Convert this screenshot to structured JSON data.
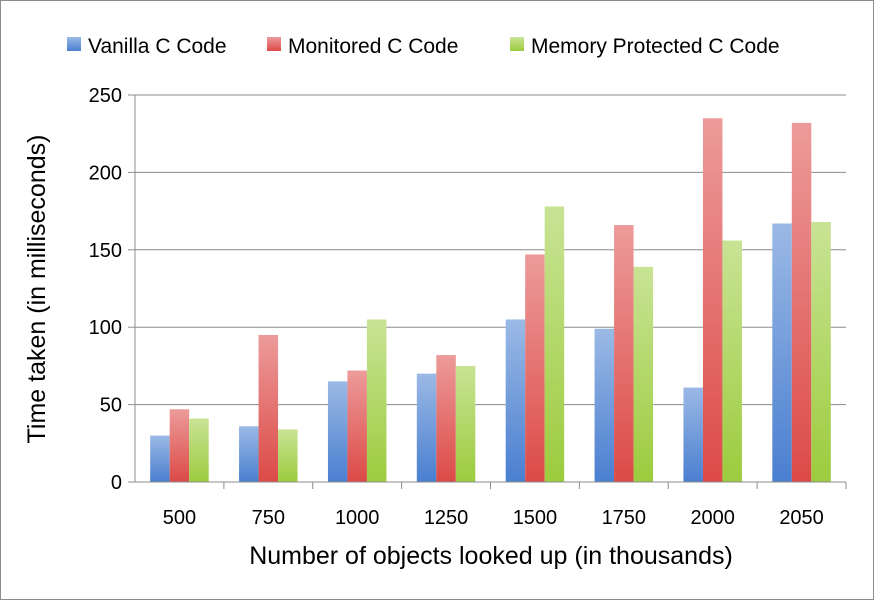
{
  "chart_data": {
    "type": "bar",
    "title": "",
    "xlabel": "Number of objects looked up (in thousands)",
    "ylabel": "Time taken (in milliseconds)",
    "categories": [
      "500",
      "750",
      "1000",
      "1250",
      "1500",
      "1750",
      "2000",
      "2050"
    ],
    "ylim": [
      0,
      250
    ],
    "yticks": [
      "0",
      "50",
      "100",
      "150",
      "200",
      "250"
    ],
    "grid": "horizontal",
    "legend_position": "top",
    "series": [
      {
        "name": "Vanilla C Code",
        "color": "#4a7fd0",
        "values": [
          30,
          36,
          65,
          70,
          105,
          99,
          61,
          167
        ]
      },
      {
        "name": "Monitored C Code",
        "color": "#dc4a47",
        "values": [
          47,
          95,
          72,
          82,
          147,
          166,
          235,
          232
        ]
      },
      {
        "name": "Memory Protected C Code",
        "color": "#9ccc3e",
        "values": [
          41,
          34,
          105,
          75,
          178,
          139,
          156,
          168
        ]
      }
    ]
  }
}
